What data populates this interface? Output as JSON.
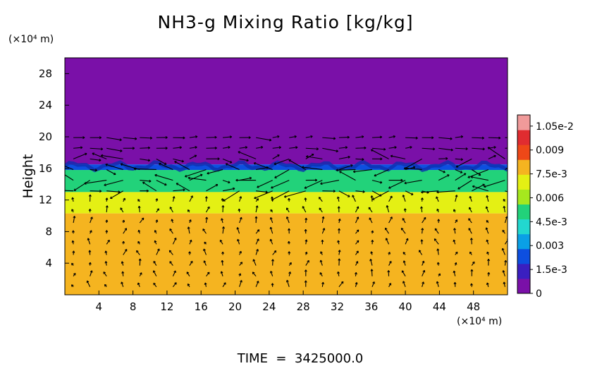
{
  "chart_data": {
    "type": "heatmap",
    "title": "NH3-g Mixing Ratio [kg/kg]",
    "ylabel": "Height",
    "x_unit_label": "(×10⁴ m)",
    "y_unit_label": "(×10⁴ m)",
    "footer": "TIME  =  3425000.0",
    "xlim": [
      0,
      52
    ],
    "ylim": [
      0,
      30
    ],
    "x_ticks": [
      4,
      8,
      12,
      16,
      20,
      24,
      28,
      32,
      36,
      40,
      44,
      48
    ],
    "y_ticks": [
      4,
      8,
      12,
      16,
      20,
      24,
      28
    ],
    "colorbar": {
      "range": [
        0,
        0.0112
      ],
      "tick_values": [
        0,
        0.0015,
        0.003,
        0.0045,
        0.006,
        0.0075,
        0.009,
        0.0105
      ],
      "tick_labels": [
        "0",
        "1.5e-3",
        "0.003",
        "4.5e-3",
        "0.006",
        "7.5e-3",
        "0.009",
        "1.05e-2"
      ],
      "colors": [
        "#7a10a8",
        "#3a1fc0",
        "#0d4fe0",
        "#0aa0e6",
        "#22d8d0",
        "#22d27a",
        "#a6e81e",
        "#e4f014",
        "#f5b420",
        "#ee4818",
        "#e02c30",
        "#f09a9a"
      ]
    },
    "layers": [
      {
        "name": "upper",
        "y_range": [
          16.5,
          30
        ],
        "value": 0.0
      },
      {
        "name": "transition",
        "y_range": [
          15.8,
          16.5
        ],
        "value": 0.0025
      },
      {
        "name": "middle",
        "y_range": [
          13,
          15.8
        ],
        "value": 0.0048
      },
      {
        "name": "lower-mix",
        "y_range": [
          10.3,
          13
        ],
        "value": 0.0068
      },
      {
        "name": "lower",
        "y_range": [
          0,
          10.3
        ],
        "value": 0.0079
      }
    ]
  }
}
